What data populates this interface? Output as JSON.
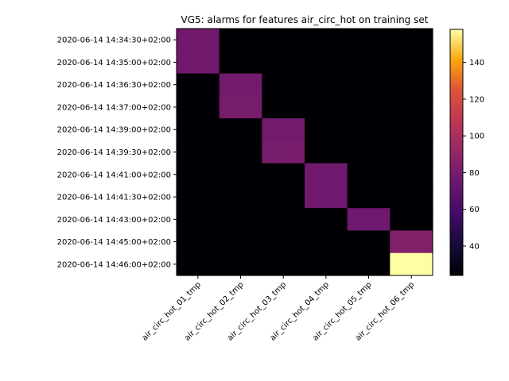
{
  "chart_data": {
    "type": "heatmap",
    "title": "VG5: alarms for features air_circ_hot on training set",
    "xlabel": "",
    "ylabel": "",
    "x_categories": [
      "air_circ_hot_01_tmp",
      "air_circ_hot_02_tmp",
      "air_circ_hot_03_tmp",
      "air_circ_hot_04_tmp",
      "air_circ_hot_05_tmp",
      "air_circ_hot_06_tmp"
    ],
    "y_categories": [
      "2020-06-14 14:34:30+02:00",
      "2020-06-14 14:35:00+02:00",
      "2020-06-14 14:36:30+02:00",
      "2020-06-14 14:37:00+02:00",
      "2020-06-14 14:39:00+02:00",
      "2020-06-14 14:39:30+02:00",
      "2020-06-14 14:41:00+02:00",
      "2020-06-14 14:41:30+02:00",
      "2020-06-14 14:43:00+02:00",
      "2020-06-14 14:45:00+02:00",
      "2020-06-14 14:46:00+02:00"
    ],
    "values": [
      [
        77,
        24,
        24,
        24,
        24,
        24
      ],
      [
        77,
        24,
        24,
        24,
        24,
        24
      ],
      [
        24,
        78,
        24,
        24,
        24,
        24
      ],
      [
        24,
        80,
        24,
        24,
        24,
        24
      ],
      [
        24,
        24,
        78,
        24,
        24,
        24
      ],
      [
        24,
        24,
        80,
        24,
        24,
        24
      ],
      [
        24,
        24,
        24,
        76,
        24,
        24
      ],
      [
        24,
        24,
        24,
        76,
        24,
        24
      ],
      [
        24,
        24,
        24,
        24,
        76,
        24
      ],
      [
        24,
        24,
        24,
        24,
        24,
        84
      ],
      [
        24,
        24,
        24,
        24,
        24,
        158
      ]
    ],
    "colormap": "inferno",
    "colorbar": {
      "vmin": 24,
      "vmax": 158,
      "ticks": [
        40,
        60,
        80,
        100,
        120,
        140
      ]
    }
  }
}
